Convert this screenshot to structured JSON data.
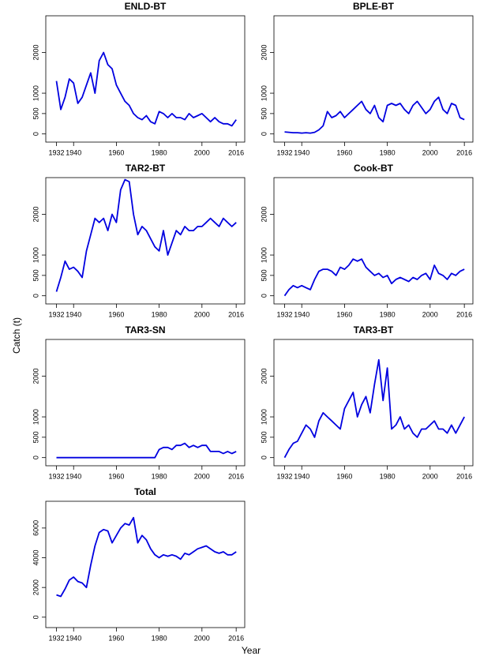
{
  "ylabel": "Catch (t)",
  "xlabel": "Year",
  "chart_data": [
    {
      "type": "line",
      "title": "ENLD-BT",
      "color": "#0000e0",
      "x": [
        1932,
        1934,
        1936,
        1938,
        1940,
        1942,
        1944,
        1946,
        1948,
        1950,
        1952,
        1954,
        1956,
        1958,
        1960,
        1962,
        1964,
        1966,
        1968,
        1970,
        1972,
        1974,
        1976,
        1978,
        1980,
        1982,
        1984,
        1986,
        1988,
        1990,
        1992,
        1994,
        1996,
        1998,
        2000,
        2002,
        2004,
        2006,
        2008,
        2010,
        2012,
        2014,
        2016
      ],
      "values": [
        1300,
        600,
        900,
        1350,
        1250,
        750,
        900,
        1200,
        1500,
        1000,
        1800,
        2000,
        1700,
        1600,
        1200,
        1000,
        800,
        700,
        500,
        400,
        350,
        450,
        300,
        250,
        550,
        500,
        400,
        500,
        400,
        400,
        350,
        500,
        400,
        450,
        500,
        400,
        300,
        400,
        300,
        250,
        250,
        200,
        350
      ],
      "xlim": [
        1927,
        2020
      ],
      "xticks": [
        1932,
        1940,
        1960,
        1980,
        2000,
        2016
      ],
      "ylim": [
        -200,
        2900
      ],
      "yticks": [
        0,
        500,
        1000,
        2000
      ]
    },
    {
      "type": "line",
      "title": "BPLE-BT",
      "color": "#0000e0",
      "x": [
        1932,
        1934,
        1936,
        1938,
        1940,
        1942,
        1944,
        1946,
        1948,
        1950,
        1952,
        1954,
        1956,
        1958,
        1960,
        1962,
        1964,
        1966,
        1968,
        1970,
        1972,
        1974,
        1976,
        1978,
        1980,
        1982,
        1984,
        1986,
        1988,
        1990,
        1992,
        1994,
        1996,
        1998,
        2000,
        2002,
        2004,
        2006,
        2008,
        2010,
        2012,
        2014,
        2016
      ],
      "values": [
        50,
        40,
        30,
        30,
        20,
        30,
        20,
        40,
        100,
        200,
        550,
        400,
        450,
        550,
        400,
        500,
        600,
        700,
        800,
        600,
        500,
        700,
        400,
        300,
        700,
        750,
        700,
        750,
        600,
        500,
        700,
        800,
        650,
        500,
        600,
        800,
        900,
        600,
        500,
        750,
        700,
        400,
        350
      ],
      "xlim": [
        1927,
        2020
      ],
      "xticks": [
        1932,
        1940,
        1960,
        1980,
        2000,
        2016
      ],
      "ylim": [
        -200,
        2900
      ],
      "yticks": [
        0,
        500,
        1000,
        2000
      ]
    },
    {
      "type": "line",
      "title": "TAR2-BT",
      "color": "#0000e0",
      "x": [
        1932,
        1934,
        1936,
        1938,
        1940,
        1942,
        1944,
        1946,
        1948,
        1950,
        1952,
        1954,
        1956,
        1958,
        1960,
        1962,
        1964,
        1966,
        1968,
        1970,
        1972,
        1974,
        1976,
        1978,
        1980,
        1982,
        1984,
        1986,
        1988,
        1990,
        1992,
        1994,
        1996,
        1998,
        2000,
        2002,
        2004,
        2006,
        2008,
        2010,
        2012,
        2014,
        2016
      ],
      "values": [
        100,
        450,
        850,
        650,
        700,
        600,
        450,
        1100,
        1500,
        1900,
        1800,
        1900,
        1600,
        2000,
        1800,
        2600,
        2850,
        2800,
        2000,
        1500,
        1700,
        1600,
        1400,
        1200,
        1100,
        1600,
        1000,
        1300,
        1600,
        1500,
        1700,
        1600,
        1600,
        1700,
        1700,
        1800,
        1900,
        1800,
        1700,
        1900,
        1800,
        1700,
        1800
      ],
      "xlim": [
        1927,
        2020
      ],
      "xticks": [
        1932,
        1940,
        1960,
        1980,
        2000,
        2016
      ],
      "ylim": [
        -200,
        2900
      ],
      "yticks": [
        0,
        500,
        1000,
        2000
      ]
    },
    {
      "type": "line",
      "title": "Cook-BT",
      "color": "#0000e0",
      "x": [
        1932,
        1934,
        1936,
        1938,
        1940,
        1942,
        1944,
        1946,
        1948,
        1950,
        1952,
        1954,
        1956,
        1958,
        1960,
        1962,
        1964,
        1966,
        1968,
        1970,
        1972,
        1974,
        1976,
        1978,
        1980,
        1982,
        1984,
        1986,
        1988,
        1990,
        1992,
        1994,
        1996,
        1998,
        2000,
        2002,
        2004,
        2006,
        2008,
        2010,
        2012,
        2014,
        2016
      ],
      "values": [
        0,
        150,
        250,
        200,
        250,
        200,
        150,
        400,
        600,
        650,
        650,
        600,
        500,
        700,
        650,
        750,
        900,
        850,
        900,
        700,
        600,
        500,
        550,
        450,
        500,
        300,
        400,
        450,
        400,
        350,
        450,
        400,
        500,
        550,
        400,
        750,
        550,
        500,
        400,
        550,
        500,
        600,
        650
      ],
      "xlim": [
        1927,
        2020
      ],
      "xticks": [
        1932,
        1940,
        1960,
        1980,
        2000,
        2016
      ],
      "ylim": [
        -200,
        2900
      ],
      "yticks": [
        0,
        500,
        1000,
        2000
      ]
    },
    {
      "type": "line",
      "title": "TAR3-SN",
      "color": "#0000e0",
      "x": [
        1932,
        1934,
        1936,
        1938,
        1940,
        1942,
        1944,
        1946,
        1948,
        1950,
        1952,
        1954,
        1956,
        1958,
        1960,
        1962,
        1964,
        1966,
        1968,
        1970,
        1972,
        1974,
        1976,
        1978,
        1980,
        1982,
        1984,
        1986,
        1988,
        1990,
        1992,
        1994,
        1996,
        1998,
        2000,
        2002,
        2004,
        2006,
        2008,
        2010,
        2012,
        2014,
        2016
      ],
      "values": [
        0,
        0,
        0,
        0,
        0,
        0,
        0,
        0,
        0,
        0,
        0,
        0,
        0,
        0,
        0,
        0,
        0,
        0,
        0,
        0,
        0,
        0,
        0,
        0,
        200,
        250,
        250,
        200,
        300,
        300,
        350,
        250,
        300,
        250,
        300,
        300,
        150,
        150,
        150,
        100,
        150,
        100,
        150
      ],
      "xlim": [
        1927,
        2020
      ],
      "xticks": [
        1932,
        1940,
        1960,
        1980,
        2000,
        2016
      ],
      "ylim": [
        -200,
        2900
      ],
      "yticks": [
        0,
        500,
        1000,
        2000
      ]
    },
    {
      "type": "line",
      "title": "TAR3-BT",
      "color": "#0000e0",
      "x": [
        1932,
        1934,
        1936,
        1938,
        1940,
        1942,
        1944,
        1946,
        1948,
        1950,
        1952,
        1954,
        1956,
        1958,
        1960,
        1962,
        1964,
        1966,
        1968,
        1970,
        1972,
        1974,
        1976,
        1978,
        1980,
        1982,
        1984,
        1986,
        1988,
        1990,
        1992,
        1994,
        1996,
        1998,
        2000,
        2002,
        2004,
        2006,
        2008,
        2010,
        2012,
        2014,
        2016
      ],
      "values": [
        0,
        200,
        350,
        400,
        600,
        800,
        700,
        500,
        900,
        1100,
        1000,
        900,
        800,
        700,
        1200,
        1400,
        1600,
        1000,
        1300,
        1500,
        1100,
        1800,
        2400,
        1400,
        2200,
        700,
        800,
        1000,
        700,
        800,
        600,
        500,
        700,
        700,
        800,
        900,
        700,
        700,
        600,
        800,
        600,
        800,
        1000
      ],
      "xlim": [
        1927,
        2020
      ],
      "xticks": [
        1932,
        1940,
        1960,
        1980,
        2000,
        2016
      ],
      "ylim": [
        -200,
        2900
      ],
      "yticks": [
        0,
        500,
        1000,
        2000
      ]
    },
    {
      "type": "line",
      "title": "Total",
      "color": "#0000e0",
      "x": [
        1932,
        1934,
        1936,
        1938,
        1940,
        1942,
        1944,
        1946,
        1948,
        1950,
        1952,
        1954,
        1956,
        1958,
        1960,
        1962,
        1964,
        1966,
        1968,
        1970,
        1972,
        1974,
        1976,
        1978,
        1980,
        1982,
        1984,
        1986,
        1988,
        1990,
        1992,
        1994,
        1996,
        1998,
        2000,
        2002,
        2004,
        2006,
        2008,
        2010,
        2012,
        2014,
        2016
      ],
      "values": [
        1500,
        1400,
        1900,
        2500,
        2700,
        2400,
        2300,
        2000,
        3500,
        4800,
        5700,
        5900,
        5800,
        5000,
        5500,
        6000,
        6300,
        6200,
        6700,
        5000,
        5500,
        5200,
        4600,
        4200,
        4000,
        4200,
        4100,
        4200,
        4100,
        3900,
        4300,
        4200,
        4400,
        4600,
        4700,
        4800,
        4600,
        4400,
        4300,
        4400,
        4200,
        4200,
        4400
      ],
      "xlim": [
        1927,
        2020
      ],
      "xticks": [
        1932,
        1940,
        1960,
        1980,
        2000,
        2016
      ],
      "ylim": [
        -700,
        7800
      ],
      "yticks": [
        0,
        2000,
        4000,
        6000
      ]
    }
  ]
}
